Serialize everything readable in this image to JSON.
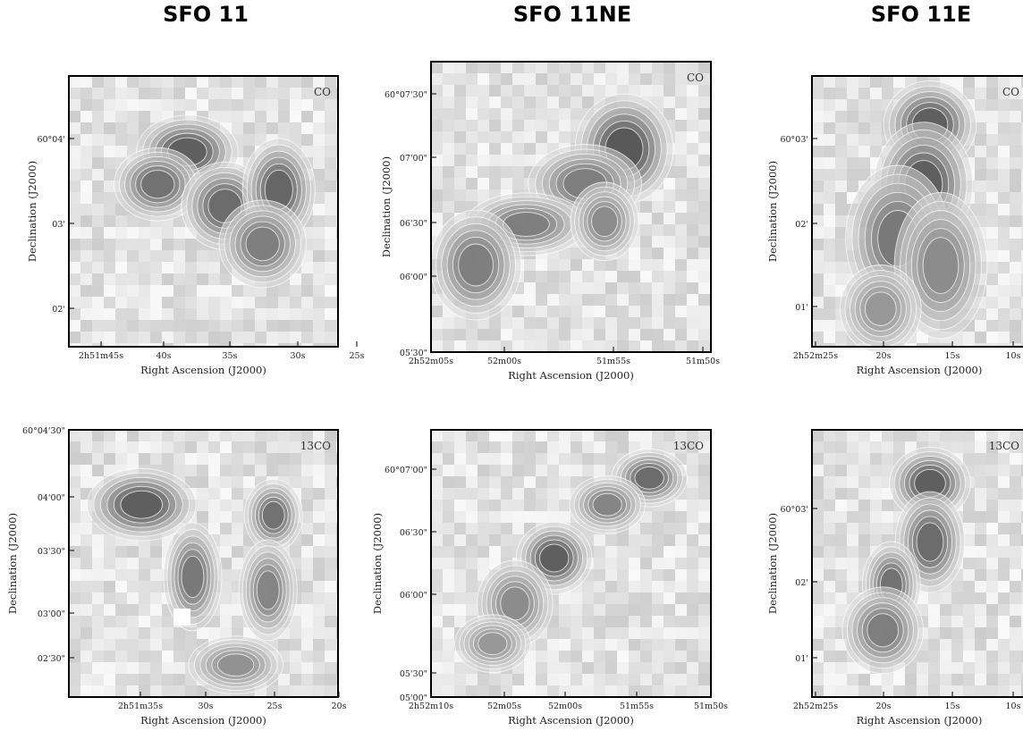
{
  "columns": [
    {
      "id": "sfo11",
      "title": "SFO 11"
    },
    {
      "id": "sfo11ne",
      "title": "SFO 11NE"
    },
    {
      "id": "sfo11e",
      "title": "SFO 11E"
    }
  ],
  "axis_labels": {
    "ra": "Right Ascension (J2000)",
    "dec": "Declination (J2000)"
  },
  "panels": [
    {
      "id": "sfo11-co",
      "tracer": "CO",
      "ra_ticks": [
        "2h51m45s",
        "40s",
        "35s",
        "30s",
        "25s"
      ],
      "dec_ticks": [
        "60°04'",
        "03'",
        "02'"
      ]
    },
    {
      "id": "sfo11ne-co",
      "tracer": "CO",
      "ra_ticks": [
        "2h52m05s",
        "52m00s",
        "51m55s",
        "51m50s"
      ],
      "dec_ticks": [
        "60°07'30\"",
        "07'00\"",
        "06'30\"",
        "06'00\"",
        "05'30\""
      ]
    },
    {
      "id": "sfo11e-co",
      "tracer": "CO",
      "ra_ticks": [
        "2h52m25s",
        "20s",
        "15s",
        "10s"
      ],
      "dec_ticks": [
        "60°03'",
        "02'",
        "01'"
      ]
    },
    {
      "id": "sfo11-13co",
      "tracer": "13CO",
      "ra_ticks": [
        "2h51m35s",
        "30s",
        "25s",
        "20s"
      ],
      "dec_ticks": [
        "60°04'30\"",
        "04'00\"",
        "03'30\"",
        "03'00\"",
        "02'30\""
      ]
    },
    {
      "id": "sfo11ne-13co",
      "tracer": "13CO",
      "ra_ticks": [
        "2h52m10s",
        "52m05s",
        "52m00s",
        "51m55s",
        "51m50s"
      ],
      "dec_ticks": [
        "60°07'00\"",
        "06'30\"",
        "06'00\"",
        "05'30\"",
        "05'00\""
      ]
    },
    {
      "id": "sfo11e-13co",
      "tracer": "13CO",
      "ra_ticks": [
        "2h52m25s",
        "20s",
        "15s",
        "10s"
      ],
      "dec_ticks": [
        "60°03'",
        "02'",
        "01'"
      ]
    }
  ]
}
